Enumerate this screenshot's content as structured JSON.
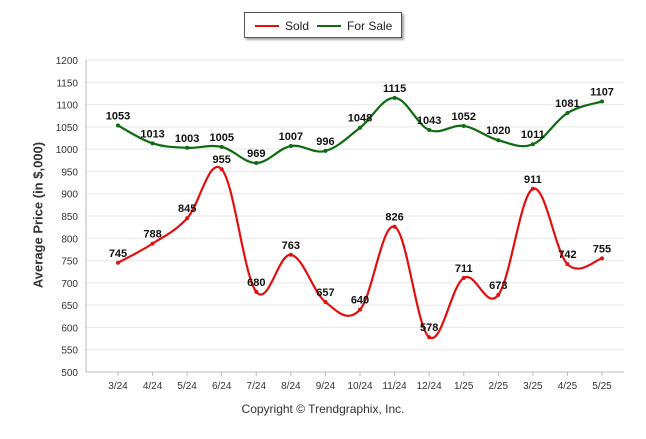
{
  "legend": {
    "items": [
      {
        "label": "Sold",
        "color": "#e01010"
      },
      {
        "label": "For Sale",
        "color": "#0f6b12"
      }
    ]
  },
  "footer": {
    "text": "Copyright © Trendgraphix, Inc."
  },
  "chart_data": {
    "type": "line",
    "ylabel": "Average Price (in $,000)",
    "xlabel": "",
    "title": "",
    "ylim": [
      500,
      1200
    ],
    "yticks": [
      500,
      550,
      600,
      650,
      700,
      750,
      800,
      850,
      900,
      950,
      1000,
      1050,
      1100,
      1150,
      1200
    ],
    "grid": true,
    "legend_position": "top-center",
    "categories": [
      "3/24",
      "4/24",
      "5/24",
      "6/24",
      "7/24",
      "8/24",
      "9/24",
      "10/24",
      "11/24",
      "12/24",
      "1/25",
      "2/25",
      "3/25",
      "4/25",
      "5/25"
    ],
    "series": [
      {
        "name": "Sold",
        "color": "#e01010",
        "values": [
          745,
          788,
          845,
          955,
          680,
          763,
          657,
          640,
          826,
          578,
          711,
          673,
          911,
          742,
          755
        ]
      },
      {
        "name": "For Sale",
        "color": "#0f6b12",
        "values": [
          1053,
          1013,
          1003,
          1005,
          969,
          1007,
          996,
          1048,
          1115,
          1043,
          1052,
          1020,
          1011,
          1081,
          1107
        ]
      }
    ]
  }
}
